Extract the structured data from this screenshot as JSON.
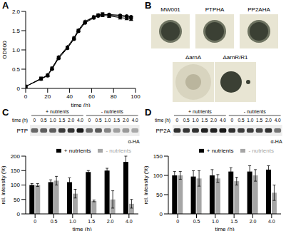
{
  "chart_data": [
    {
      "panel": "A",
      "type": "line",
      "x_label": "time (h)",
      "y_label": "OD600",
      "x": [
        0,
        14,
        20,
        24,
        30,
        38,
        44,
        48,
        54,
        62,
        66,
        70,
        76,
        86,
        92,
        96
      ],
      "series": [
        {
          "color": "#000000",
          "marker": "square",
          "values": [
            0.05,
            0.26,
            0.34,
            0.52,
            0.8,
            1.06,
            1.3,
            1.5,
            1.72,
            1.85,
            1.9,
            1.93,
            1.9,
            1.88,
            1.86,
            1.84
          ]
        },
        {
          "color": "#000000",
          "marker": "circle",
          "values": [
            0.05,
            0.24,
            0.33,
            0.5,
            0.78,
            1.04,
            1.28,
            1.48,
            1.7,
            1.83,
            1.88,
            1.91,
            1.92,
            1.9,
            1.88,
            1.86
          ]
        },
        {
          "color": "#000000",
          "marker": "triangle",
          "values": [
            0.05,
            0.25,
            0.35,
            0.53,
            0.82,
            1.08,
            1.32,
            1.52,
            1.74,
            1.86,
            1.91,
            1.9,
            1.88,
            1.84,
            1.82,
            1.8
          ]
        }
      ],
      "xlim": [
        0,
        100
      ],
      "xticks": [
        0,
        20,
        40,
        60,
        80,
        100
      ],
      "ylim": [
        0,
        2.0
      ],
      "yticks": [
        0,
        {
          "value": 0.5,
          "label": "0.5"
        },
        {
          "value": 1.0,
          "label": "1.0"
        },
        {
          "value": 1.5,
          "label": "1.5"
        },
        {
          "value": 2.0,
          "label": "2.0"
        }
      ]
    },
    {
      "panel": "C",
      "type": "bar",
      "protein": "PTP",
      "antibody": "α-HA",
      "x_label": "time (h)",
      "y_label": "rel. intensity (%)",
      "categories": [
        "0",
        "0.5",
        "1.0",
        "1.5",
        "2.0",
        "4.0"
      ],
      "series": [
        {
          "name": "+ nutrients",
          "color": "#000000",
          "values": [
            100,
            110,
            110,
            145,
            150,
            180
          ],
          "errors": [
            5,
            8,
            15,
            5,
            8,
            20
          ]
        },
        {
          "name": "- nutrients",
          "color": "#a6a6a6",
          "values": [
            100,
            115,
            70,
            45,
            50,
            35
          ],
          "errors": [
            5,
            15,
            15,
            3,
            30,
            15
          ]
        }
      ],
      "ylim": [
        0,
        200
      ],
      "yticks": [
        0,
        50,
        100,
        150,
        200
      ],
      "legend": "top"
    },
    {
      "panel": "D",
      "type": "bar",
      "protein": "PP2A",
      "antibody": "α-HA",
      "x_label": "time (h)",
      "y_label": "rel. intensity (%)",
      "categories": [
        "0",
        "0.5",
        "1.0",
        "1.5",
        "2.0",
        "4.0"
      ],
      "series": [
        {
          "name": "+ nutrients",
          "color": "#000000",
          "values": [
            100,
            97,
            100,
            110,
            110,
            115
          ],
          "errors": [
            10,
            15,
            15,
            10,
            15,
            10
          ]
        },
        {
          "name": "- nutrients",
          "color": "#a6a6a6",
          "values": [
            100,
            92,
            92,
            85,
            100,
            55
          ],
          "errors": [
            10,
            20,
            10,
            10,
            15,
            20
          ]
        }
      ],
      "ylim": [
        0,
        150
      ],
      "yticks": [
        0,
        50,
        100,
        150
      ],
      "legend": "top"
    }
  ],
  "panel_b": {
    "panel": "B",
    "strains": [
      "MW001",
      "PTPHA",
      "PP2AHA",
      "ΔarnA",
      "ΔarnR/R1"
    ]
  }
}
